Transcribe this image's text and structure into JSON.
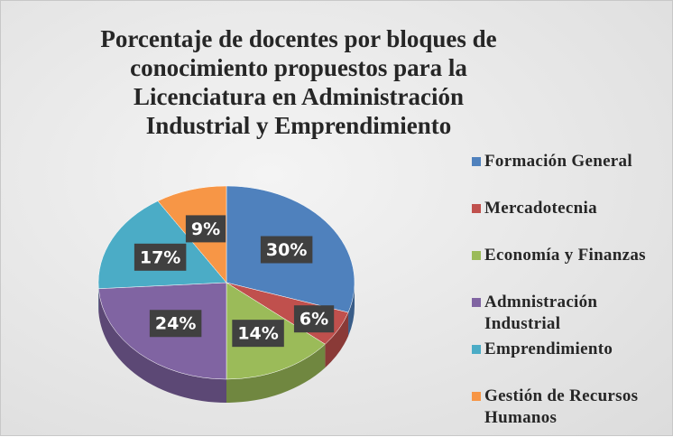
{
  "chart_data": {
    "type": "pie",
    "title": "Porcentaje de docentes por bloques de conocimiento propuestos para la Licenciatura en Administración Industrial y Emprendimiento",
    "categories": [
      "Formación General",
      "Mercadotecnia",
      "Economía y Finanzas",
      "Admnistración Industrial",
      "Emprendimiento",
      "Gestión de Recursos Humanos"
    ],
    "values": [
      30,
      6,
      14,
      24,
      17,
      9
    ],
    "value_labels": [
      "30%",
      "6%",
      "14%",
      "24%",
      "17%",
      "9%"
    ],
    "colors": [
      "#4f81bd",
      "#c0504d",
      "#9bbb59",
      "#8064a2",
      "#4bacc6",
      "#f79646"
    ],
    "legend": "right"
  }
}
